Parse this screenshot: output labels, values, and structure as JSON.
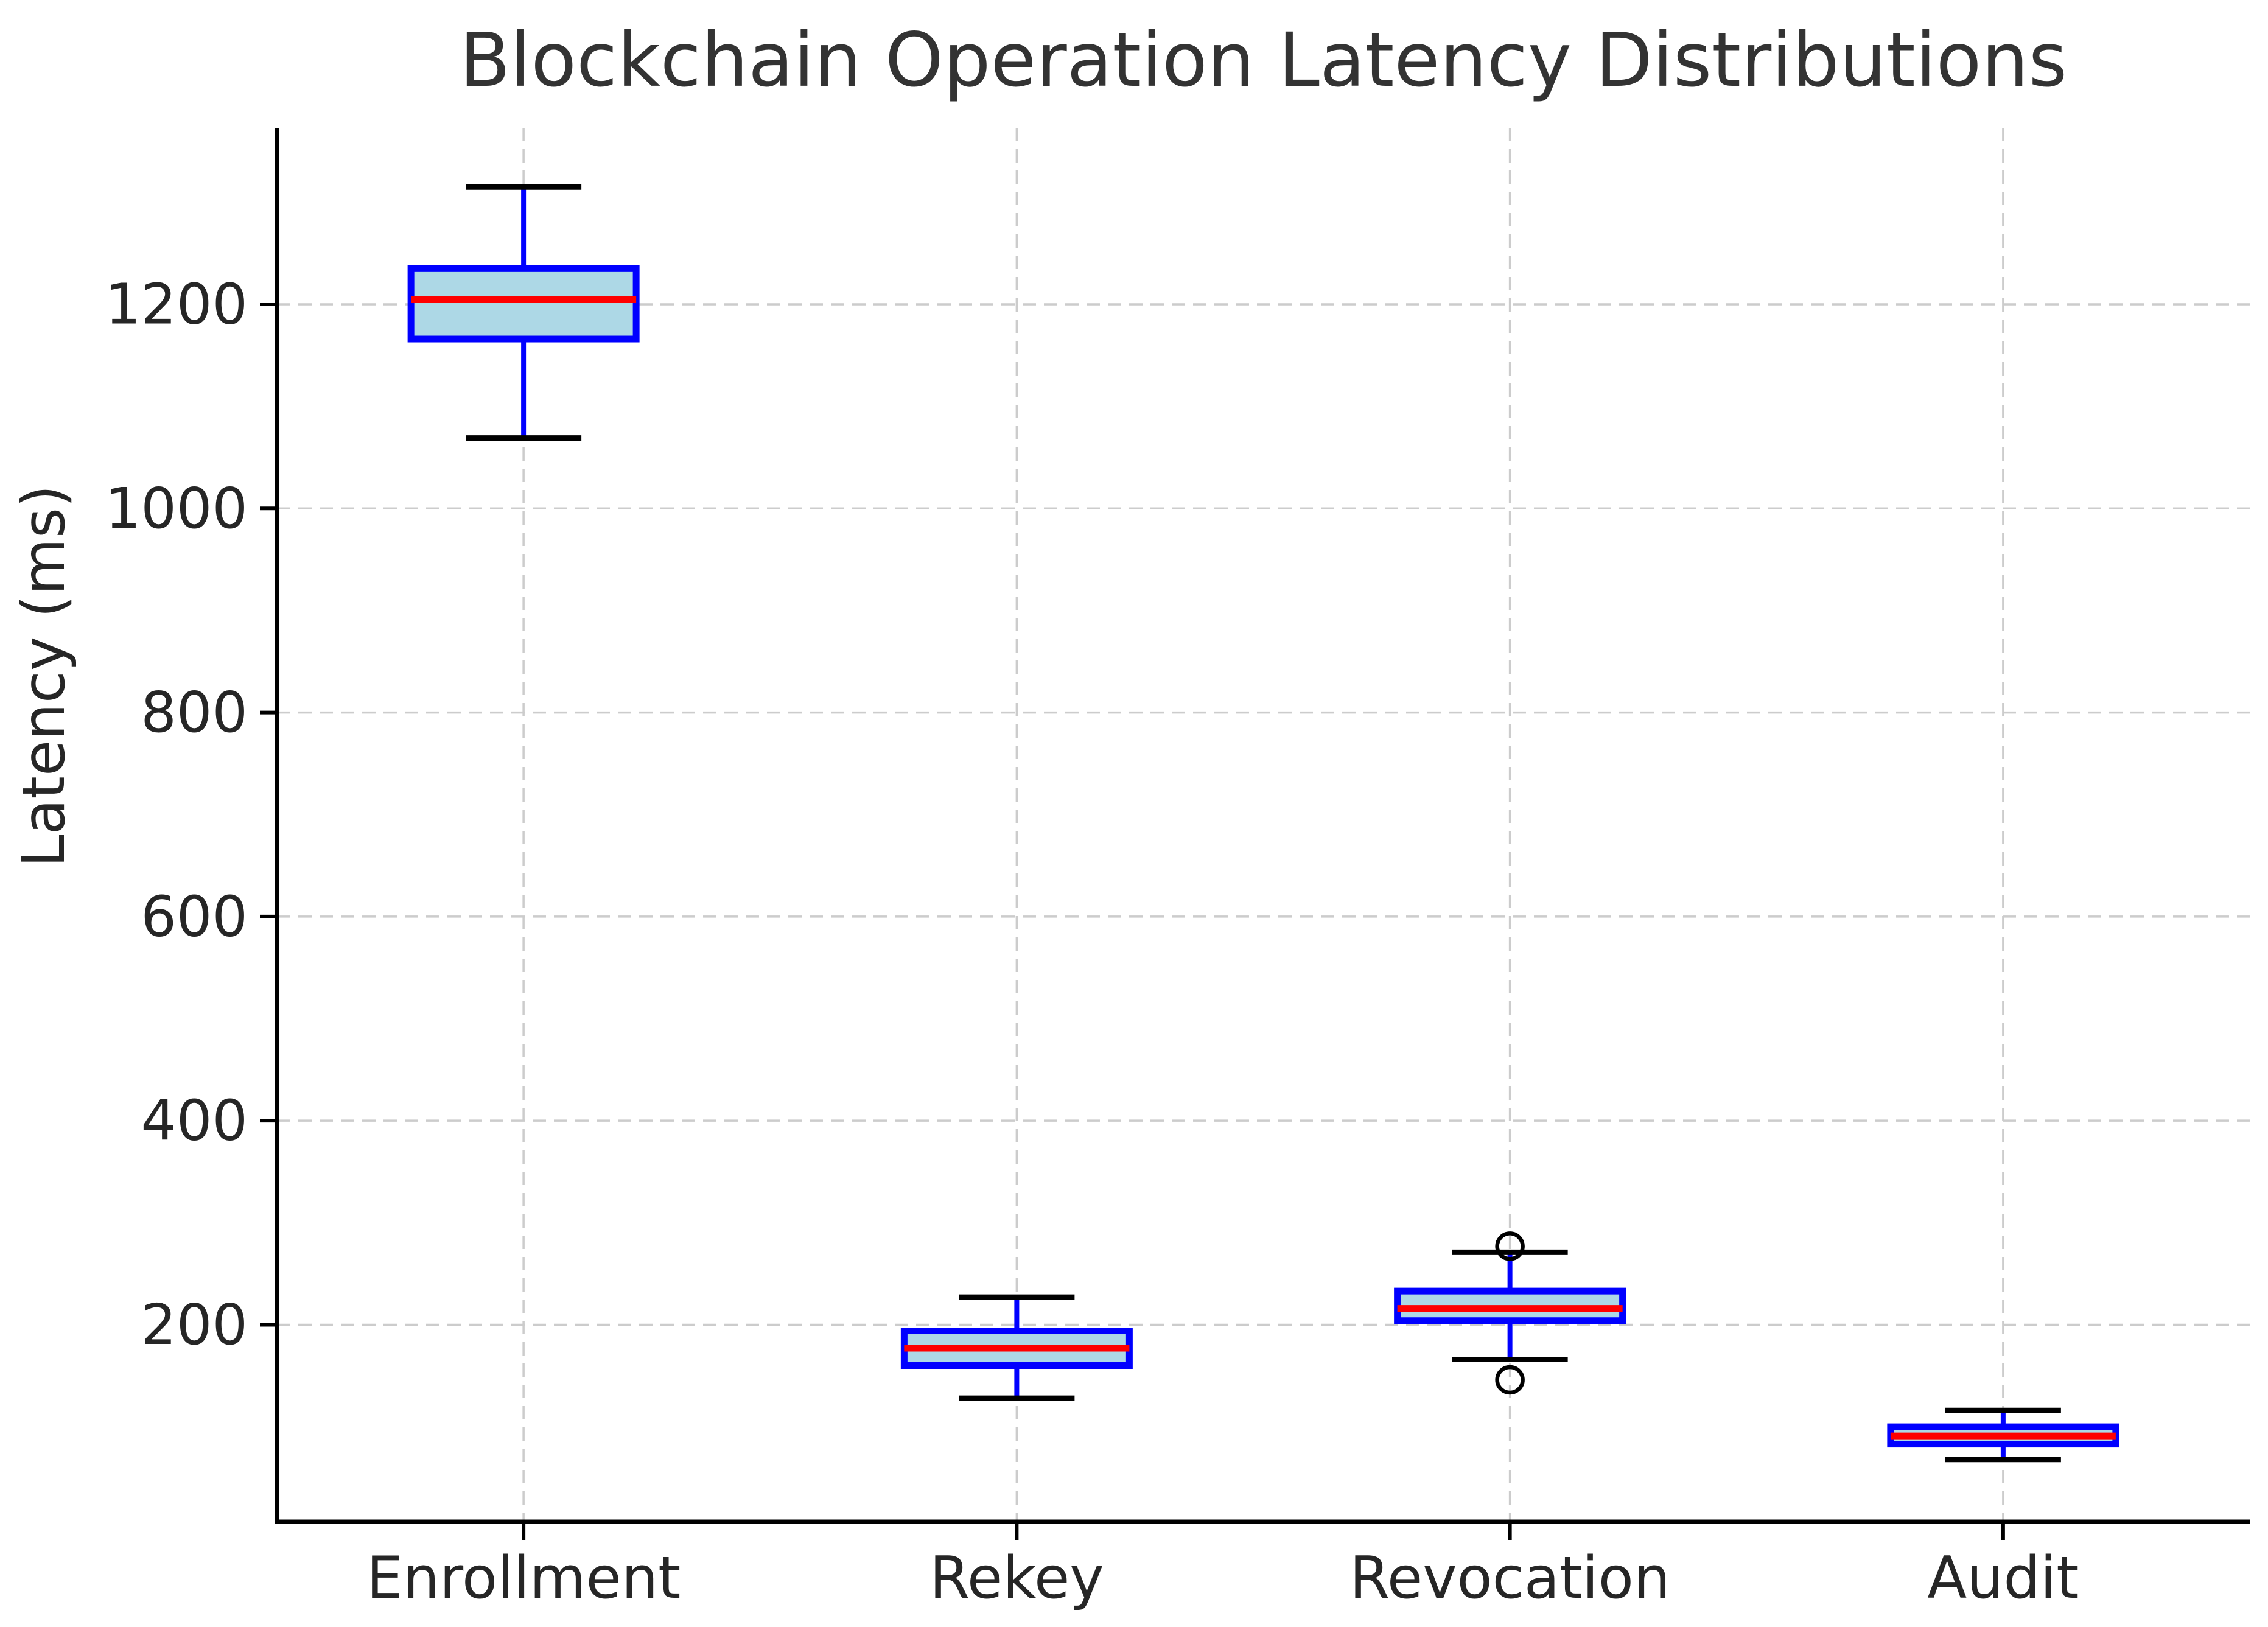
{
  "title": "Blockchain Operation Latency Distributions",
  "ylabel": "Latency (ms)",
  "chart_data": {
    "type": "boxplot",
    "title": "Blockchain Operation Latency Distributions",
    "xlabel": "",
    "ylabel": "Latency (ms)",
    "categories": [
      "Enrollment",
      "Rekey",
      "Revocation",
      "Audit"
    ],
    "yticks": [
      200,
      400,
      600,
      800,
      1000,
      1200
    ],
    "ylim": [
      7,
      1373
    ],
    "grid": true,
    "legend": "none",
    "series": [
      {
        "name": "Enrollment",
        "whislo": 1069,
        "q1": 1166,
        "med": 1205,
        "q3": 1235,
        "whishi": 1315,
        "fliers": []
      },
      {
        "name": "Rekey",
        "whislo": 128,
        "q1": 160,
        "med": 177,
        "q3": 194,
        "whishi": 227,
        "fliers": []
      },
      {
        "name": "Revocation",
        "whislo": 166,
        "q1": 204,
        "med": 216,
        "q3": 233,
        "whishi": 271,
        "fliers": [
          277,
          146
        ]
      },
      {
        "name": "Audit",
        "whislo": 68,
        "q1": 83,
        "med": 91,
        "q3": 100,
        "whishi": 116,
        "fliers": []
      }
    ],
    "colors": {
      "box_fill": "#ADD8E6",
      "box_edge": "#0000FF",
      "median": "#FF0000",
      "whisker": "#0000FF",
      "cap": "#000000",
      "flier_edge": "#000000",
      "grid": "#CCCCCC",
      "spine": "#000000",
      "text": "#262626",
      "title_text": "#333333"
    }
  }
}
